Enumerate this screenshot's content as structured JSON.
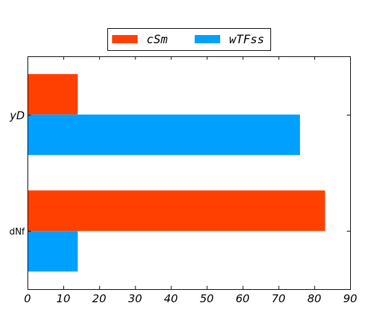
{
  "chart_data": {
    "type": "bar",
    "orientation": "horizontal",
    "title": "",
    "xlabel": "",
    "ylabel": "",
    "categories": [
      "dNf",
      "yD"
    ],
    "series": [
      {
        "name": "cSm",
        "color": "#ff4000",
        "values": [
          83,
          14
        ]
      },
      {
        "name": "wTFss",
        "color": "#00a0ff",
        "values": [
          14,
          76
        ]
      }
    ],
    "xlim": [
      0,
      90
    ],
    "xticks": [
      "0",
      "10",
      "20",
      "30",
      "40",
      "50",
      "60",
      "70",
      "80",
      "90"
    ],
    "grid": false,
    "legend_position": "top-center"
  }
}
